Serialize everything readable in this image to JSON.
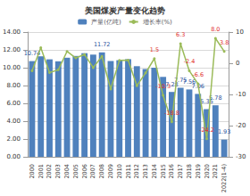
{
  "chart_data": {
    "type": "bar",
    "title": "美国煤炭产量变化趋势",
    "categories": [
      "2000",
      "2001",
      "2002",
      "2003",
      "2004",
      "2005",
      "2006",
      "2007",
      "2008",
      "2009",
      "2010",
      "2011",
      "2012",
      "2013",
      "2014",
      "2015",
      "2016",
      "2017",
      "2018",
      "2019",
      "2020",
      "2021",
      "2022(1-4)"
    ],
    "series": [
      {
        "name": "产量(亿吨)",
        "type": "bar",
        "color": "#4f81bd",
        "values": [
          10.74,
          11.28,
          10.94,
          10.72,
          11.12,
          11.32,
          11.63,
          11.47,
          11.72,
          10.75,
          10.84,
          10.96,
          10.17,
          9.85,
          10.0,
          8.97,
          7.28,
          7.75,
          7.56,
          7.06,
          5.35,
          5.78,
          1.93
        ],
        "value_labels": [
          "10.74",
          null,
          null,
          null,
          null,
          null,
          null,
          null,
          "11.72",
          null,
          null,
          null,
          null,
          null,
          null,
          null,
          "7.28",
          "7.75",
          "7.56",
          "7.06",
          "5.35",
          "5.78",
          "1.93"
        ]
      },
      {
        "name": "增长率(%)",
        "type": "line",
        "axis": "y2",
        "color": "#9bbb59",
        "marker": "circle",
        "values": [
          -2.4,
          5.0,
          -3.0,
          -2.1,
          3.8,
          1.7,
          2.8,
          -1.4,
          2.2,
          -8.3,
          0.9,
          1.0,
          -7.2,
          -3.1,
          1.5,
          -10.3,
          -18.8,
          6.3,
          -2.4,
          -6.6,
          -24.2,
          8.0,
          3.8
        ],
        "value_labels": [
          null,
          null,
          null,
          null,
          null,
          null,
          null,
          null,
          null,
          null,
          null,
          null,
          null,
          null,
          "1.5",
          "-10.3",
          "-18.8",
          "6.3",
          "-2.4",
          "-6.6",
          "-24.2",
          "8.0",
          "3.8"
        ]
      }
    ],
    "ylim": [
      0,
      14
    ],
    "yticks": [
      {
        "value": 0,
        "label": "0.00"
      },
      {
        "value": 2,
        "label": "2.00"
      },
      {
        "value": 4,
        "label": "4.00"
      },
      {
        "value": 6,
        "label": "6.00"
      },
      {
        "value": 8,
        "label": "8.00"
      },
      {
        "value": 10,
        "label": "10.00"
      },
      {
        "value": 12,
        "label": "12.00"
      },
      {
        "value": 14,
        "label": "14.00"
      }
    ],
    "y2lim": [
      -30,
      10
    ],
    "y2ticks": [
      -30,
      -20,
      -10,
      0,
      10
    ],
    "grid": true,
    "legend": "top",
    "data_labels": true
  }
}
